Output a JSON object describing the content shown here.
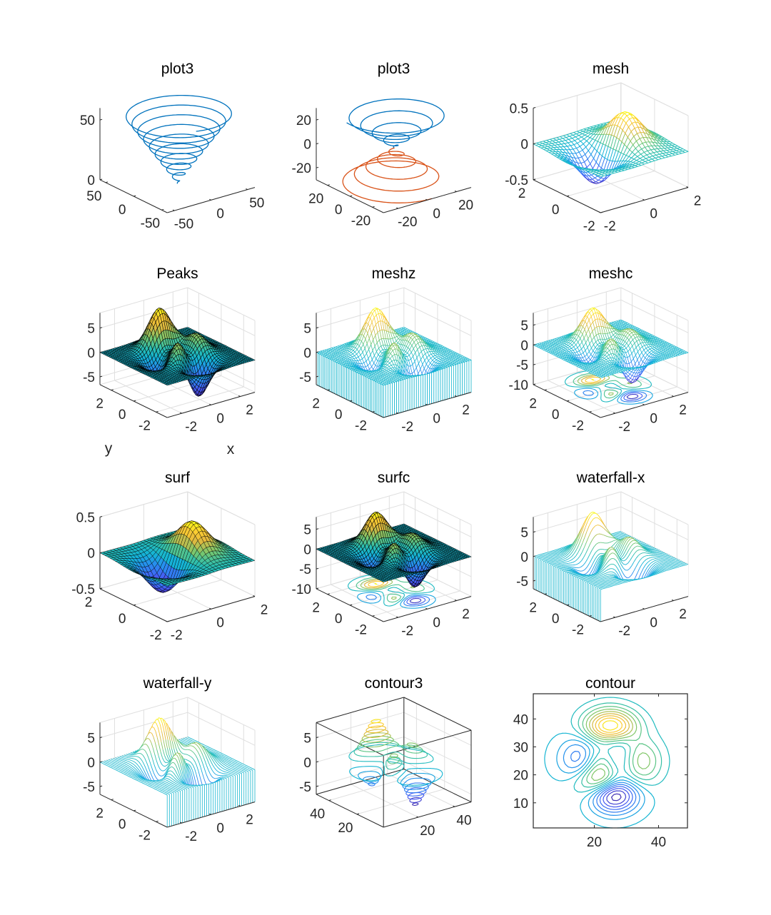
{
  "colors": {
    "axis": "#262626",
    "grid": "#dfdfdf",
    "series_blue": "#0072BD",
    "series_orange": "#D95319",
    "colormap": "parula",
    "surface_edge": "#000000"
  },
  "chart_data": [
    {
      "type": "line3d",
      "title": "plot3",
      "xlim": [
        -60,
        60
      ],
      "ylim": [
        -60,
        60
      ],
      "zlim": [
        0,
        60
      ],
      "xticks": [
        -50,
        0,
        50
      ],
      "yticks": [
        -50,
        0,
        50
      ],
      "zticks": [
        0,
        50
      ],
      "grid": false,
      "box": false,
      "series": [
        {
          "x": "t*sin(t)",
          "y": "t*cos(t)",
          "z": "t",
          "t": [
            0,
            60
          ],
          "color": "#0072BD"
        }
      ]
    },
    {
      "type": "line3d",
      "title": "plot3",
      "xlim": [
        -30,
        30
      ],
      "ylim": [
        -30,
        30
      ],
      "zlim": [
        -30,
        30
      ],
      "xticks": [
        -20,
        0,
        20
      ],
      "yticks": [
        -20,
        0,
        20
      ],
      "zticks": [
        -20,
        0,
        20
      ],
      "grid": false,
      "box": false,
      "series": [
        {
          "x": "t*sin(t)",
          "y": "t*cos(t)",
          "z": "t",
          "t": [
            0,
            30
          ],
          "color": "#0072BD"
        },
        {
          "x": "t*cos(t)",
          "y": "t*sin(t)",
          "z": "-t",
          "t": [
            0,
            30
          ],
          "color": "#D95319"
        }
      ]
    },
    {
      "type": "mesh",
      "title": "mesh",
      "function": "x*exp(-x^2-y^2)",
      "xlim": [
        -2,
        2
      ],
      "ylim": [
        -2,
        2
      ],
      "zlim": [
        -0.5,
        0.5
      ],
      "xticks": [
        -2,
        0,
        2
      ],
      "yticks": [
        -2,
        0,
        2
      ],
      "zticks": [
        -0.5,
        0,
        0.5
      ],
      "grid": true,
      "box": false
    },
    {
      "type": "surf",
      "title": "Peaks",
      "function": "peaks",
      "xlim": [
        -3,
        3
      ],
      "ylim": [
        -3,
        3
      ],
      "zlim": [
        -6.6,
        8.1
      ],
      "xticks": [
        -2,
        0,
        2
      ],
      "yticks": [
        -2,
        0,
        2
      ],
      "zticks": [
        -5,
        0,
        5
      ],
      "xlabel": "x",
      "ylabel": "y",
      "grid": true,
      "box": false
    },
    {
      "type": "meshz",
      "title": "meshz",
      "function": "peaks",
      "xlim": [
        -3,
        3
      ],
      "ylim": [
        -3,
        3
      ],
      "zlim": [
        -6.6,
        8.1
      ],
      "xticks": [
        -2,
        0,
        2
      ],
      "yticks": [
        -2,
        0,
        2
      ],
      "zticks": [
        -5,
        0,
        5
      ],
      "grid": true,
      "box": false
    },
    {
      "type": "meshc",
      "title": "meshc",
      "function": "peaks",
      "xlim": [
        -3,
        3
      ],
      "ylim": [
        -3,
        3
      ],
      "zlim": [
        -10,
        8.1
      ],
      "xticks": [
        -2,
        0,
        2
      ],
      "yticks": [
        -2,
        0,
        2
      ],
      "zticks": [
        -10,
        -5,
        0,
        5
      ],
      "grid": true,
      "box": false
    },
    {
      "type": "surf",
      "title": "surf",
      "function": "x*exp(-x^2-y^2)",
      "xlim": [
        -2,
        2
      ],
      "ylim": [
        -2,
        2
      ],
      "zlim": [
        -0.5,
        0.5
      ],
      "xticks": [
        -2,
        0,
        2
      ],
      "yticks": [
        -2,
        0,
        2
      ],
      "zticks": [
        -0.5,
        0,
        0.5
      ],
      "grid": true,
      "box": false
    },
    {
      "type": "surfc",
      "title": "surfc",
      "function": "peaks",
      "xlim": [
        -3,
        3
      ],
      "ylim": [
        -3,
        3
      ],
      "zlim": [
        -10,
        8.1
      ],
      "xticks": [
        -2,
        0,
        2
      ],
      "yticks": [
        -2,
        0,
        2
      ],
      "zticks": [
        -10,
        -5,
        0,
        5
      ],
      "grid": true,
      "box": false
    },
    {
      "type": "waterfall-x",
      "title": "waterfall-x",
      "function": "peaks",
      "xlim": [
        -3,
        3
      ],
      "ylim": [
        -3,
        3
      ],
      "zlim": [
        -6.6,
        8.1
      ],
      "xticks": [
        -2,
        0,
        2
      ],
      "yticks": [
        -2,
        0,
        2
      ],
      "zticks": [
        -5,
        0,
        5
      ],
      "grid": true,
      "box": false
    },
    {
      "type": "waterfall-y",
      "title": "waterfall-y",
      "function": "peaks",
      "xlim": [
        -3,
        3
      ],
      "ylim": [
        -3,
        3
      ],
      "zlim": [
        -6.6,
        8.1
      ],
      "xticks": [
        -2,
        0,
        2
      ],
      "yticks": [
        -2,
        0,
        2
      ],
      "zticks": [
        -5,
        0,
        5
      ],
      "grid": true,
      "box": false
    },
    {
      "type": "contour3",
      "title": "contour3",
      "function": "peaks(49)",
      "xlim": [
        1,
        49
      ],
      "ylim": [
        1,
        49
      ],
      "zlim": [
        -6.6,
        8.1
      ],
      "xticks": [
        20,
        40
      ],
      "yticks": [
        20,
        40
      ],
      "zticks": [
        -5,
        0,
        5
      ],
      "grid": true,
      "box": true
    },
    {
      "type": "contour",
      "title": "contour",
      "function": "peaks(49)",
      "xlim": [
        1,
        49
      ],
      "ylim": [
        1,
        49
      ],
      "xticks": [
        20,
        40
      ],
      "yticks": [
        10,
        20,
        30,
        40
      ],
      "grid": false,
      "box": true
    }
  ]
}
